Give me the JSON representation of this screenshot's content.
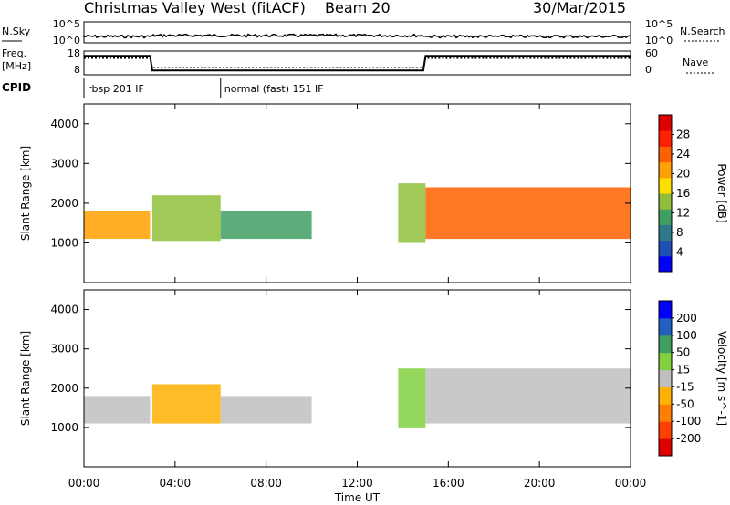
{
  "header": {
    "title": "Christmas Valley West (fitACF)",
    "beam": "Beam 20",
    "date": "30/Mar/2015"
  },
  "top_panel": {
    "nsky_label": "N.Sky",
    "nsearch_label": "N.Search",
    "freq_label": "Freq.",
    "freq_unit": "[MHz]",
    "nave_label": "Nave",
    "cpid_label": "CPID",
    "nsky_ticks": [
      "10^5",
      "10^0"
    ],
    "nsearch_ticks": [
      "10^5",
      "10^0"
    ],
    "freq_ticks": [
      "18",
      "8"
    ],
    "nave_ticks": [
      "60",
      "0"
    ],
    "cpid_segments": [
      {
        "start": 0,
        "end": 6,
        "label": "rbsp 201 IF"
      },
      {
        "start": 6,
        "end": 24,
        "label": "normal (fast) 151 IF"
      }
    ],
    "freq_series": {
      "x": [
        0,
        2.9,
        3.0,
        14.9,
        15.0,
        24
      ],
      "y": [
        16,
        16,
        9.8,
        9.8,
        16,
        16
      ]
    },
    "nave_series": {
      "x": [
        0,
        2.9,
        3.0,
        14.9,
        15.0,
        24
      ],
      "y": [
        42,
        42,
        19,
        19,
        42,
        42
      ]
    }
  },
  "chart_data": [
    {
      "type": "heatmap",
      "xlabel": "",
      "ylabel": "Slant Range [km]",
      "x_ticks": [
        "00:00",
        "04:00",
        "08:00",
        "12:00",
        "16:00",
        "20:00",
        "00:00"
      ],
      "y_ticks": [
        "4000",
        "3000",
        "2000",
        "1000"
      ],
      "ylim": [
        0,
        4500
      ],
      "xlim": [
        0,
        24
      ],
      "colorbar": {
        "label": "Power [dB]",
        "ticks": [
          "28",
          "24",
          "20",
          "16",
          "12",
          "8",
          "4"
        ],
        "range": [
          0,
          32
        ],
        "colors": [
          "#0000ff",
          "#1f4fb4",
          "#2f7a8a",
          "#3f9f62",
          "#8fbf3a",
          "#ffdf00",
          "#ffa000",
          "#ff6000",
          "#ff2000",
          "#e00000"
        ]
      },
      "echo_regions": [
        {
          "t0": 0.0,
          "t1": 2.9,
          "r0": 1100,
          "r1": 1800,
          "power": 20
        },
        {
          "t0": 3.0,
          "t1": 6.0,
          "r0": 1050,
          "r1": 2200,
          "power": 14
        },
        {
          "t0": 6.0,
          "t1": 10.0,
          "r0": 1100,
          "r1": 1800,
          "power": 10
        },
        {
          "t0": 15.0,
          "t1": 24.0,
          "r0": 1100,
          "r1": 2400,
          "power": 24
        },
        {
          "t0": 13.8,
          "t1": 15.0,
          "r0": 1000,
          "r1": 2500,
          "power": 14
        }
      ]
    },
    {
      "type": "heatmap",
      "xlabel": "Time UT",
      "ylabel": "Slant Range [km]",
      "x_ticks": [
        "00:00",
        "04:00",
        "08:00",
        "12:00",
        "16:00",
        "20:00",
        "00:00"
      ],
      "y_ticks": [
        "4000",
        "3000",
        "2000",
        "1000"
      ],
      "ylim": [
        0,
        4500
      ],
      "xlim": [
        0,
        24
      ],
      "colorbar": {
        "label": "Velocity [m s^-1]",
        "ticks": [
          "200",
          "100",
          "50",
          "15",
          "-15",
          "-50",
          "-100",
          "-200"
        ],
        "range": [
          -250,
          250
        ],
        "colors": [
          "#e00000",
          "#ff4000",
          "#ff8000",
          "#ffb000",
          "#bfbfbf",
          "#80d040",
          "#40a060",
          "#2060c0",
          "#0000ff"
        ]
      },
      "echo_regions": [
        {
          "t0": 0.0,
          "t1": 2.9,
          "r0": 1100,
          "r1": 1800,
          "velocity": 0
        },
        {
          "t0": 3.0,
          "t1": 6.0,
          "r0": 1100,
          "r1": 2100,
          "velocity": -50
        },
        {
          "t0": 6.0,
          "t1": 10.0,
          "r0": 1100,
          "r1": 1800,
          "velocity": 0
        },
        {
          "t0": 15.0,
          "t1": 24.0,
          "r0": 1100,
          "r1": 2500,
          "velocity": 0
        },
        {
          "t0": 13.8,
          "t1": 15.0,
          "r0": 1000,
          "r1": 2500,
          "velocity": 50
        }
      ]
    }
  ]
}
